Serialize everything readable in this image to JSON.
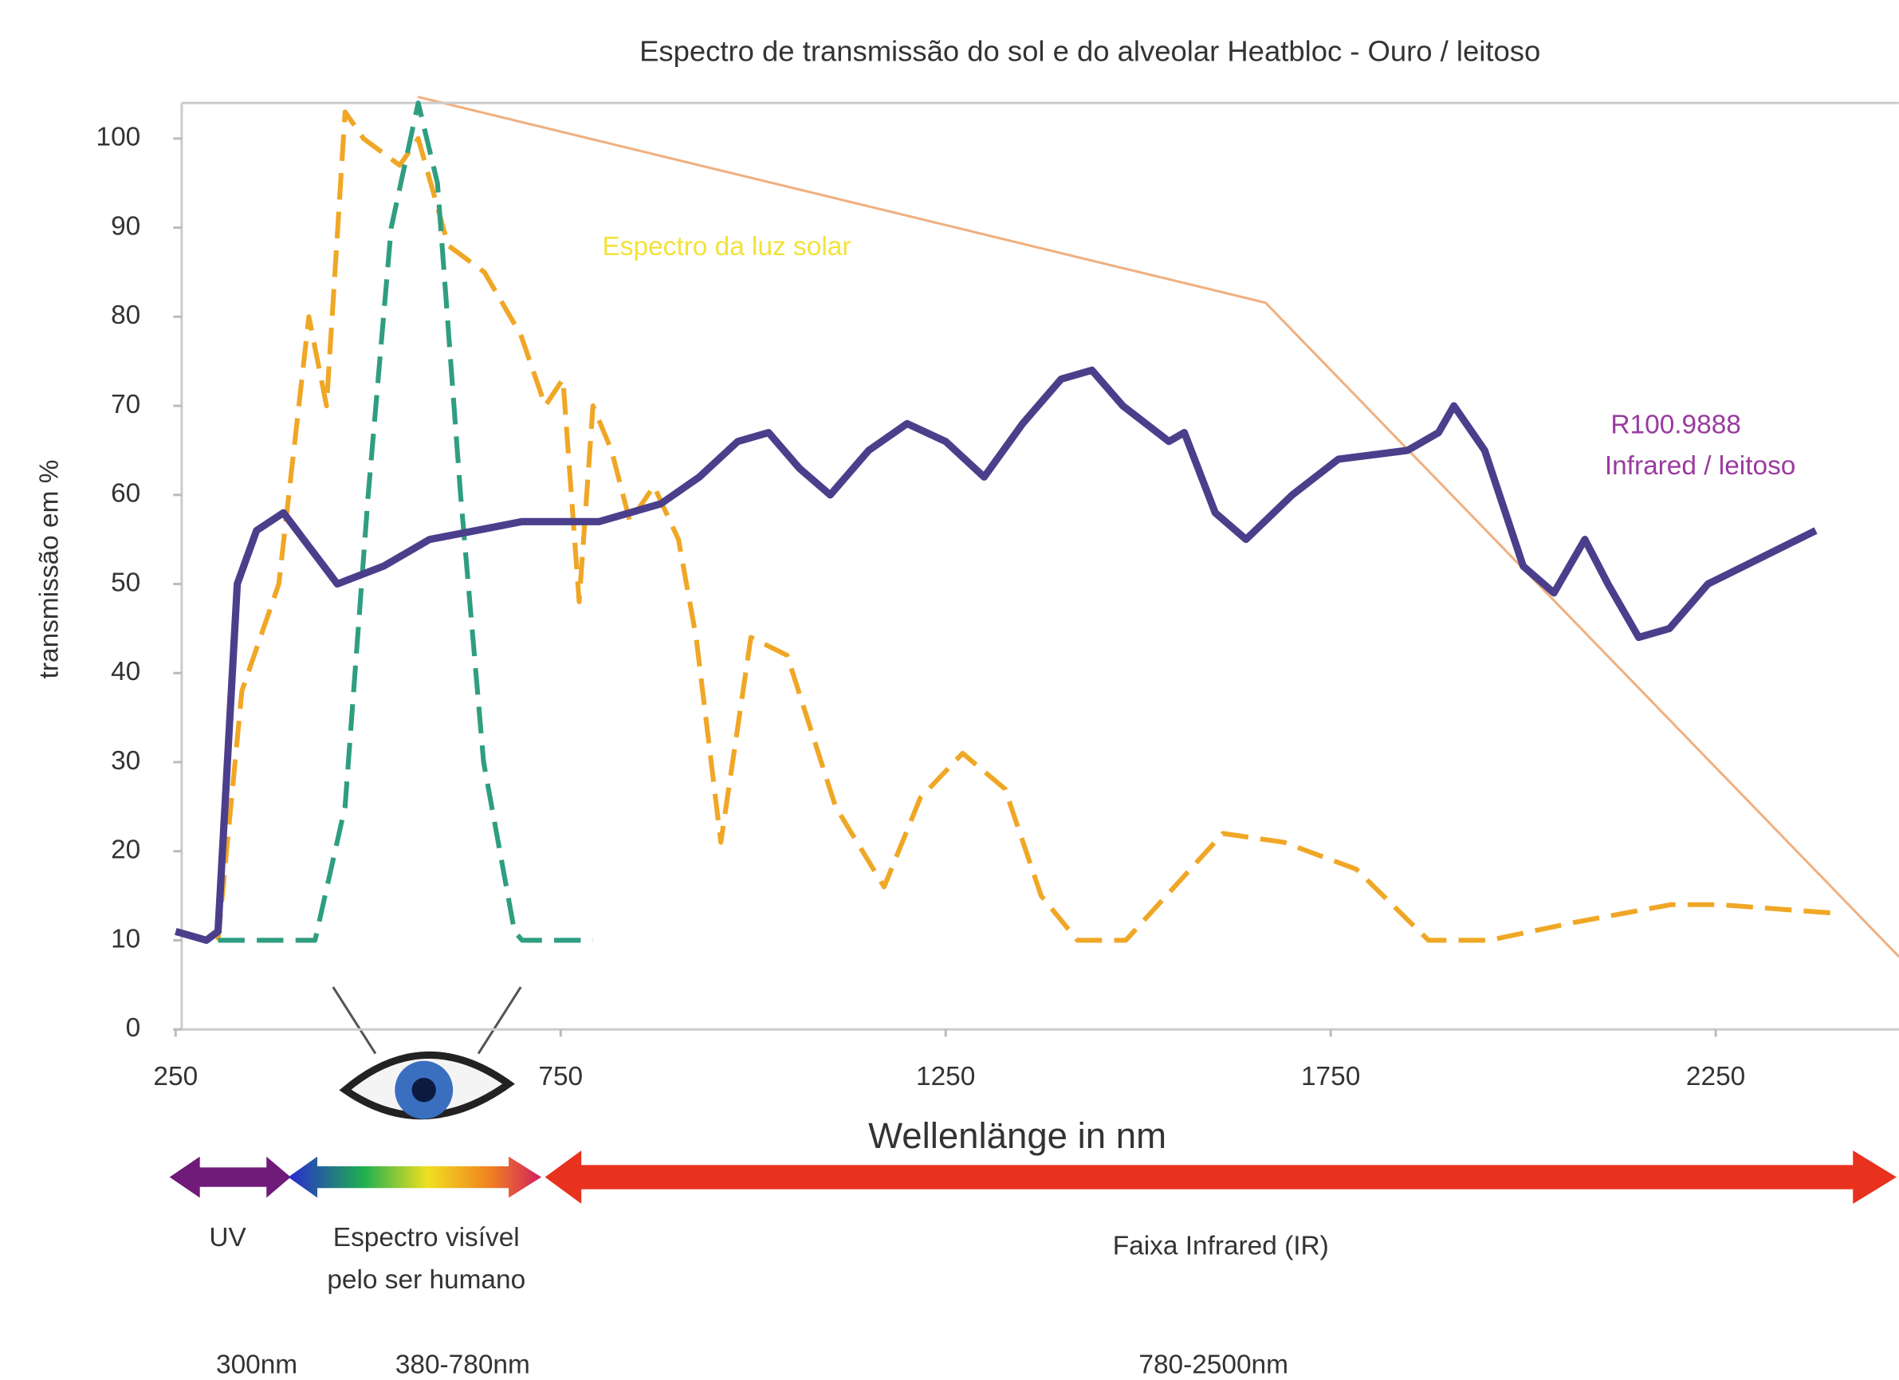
{
  "chart_data": {
    "type": "line",
    "title": "Espectro de transmissão do sol e do alveolar Heatbloc - Ouro / leitoso",
    "y_label": "transmissão em %",
    "x_label": "Wellenlänge  in nm",
    "xlim": [
      250,
      2488
    ],
    "xticks": [
      250,
      750,
      1250,
      1750,
      2250
    ],
    "ylim": [
      0,
      104
    ],
    "yticks": [
      0,
      10,
      20,
      30,
      40,
      50,
      60,
      70,
      80,
      90,
      100
    ],
    "grid": false,
    "series": [
      {
        "color": "#f0a726",
        "dashed": true,
        "x": [
          305,
          336,
          384,
          423,
          446,
          470,
          494,
          541,
          565,
          604,
          651,
          698,
          730,
          753,
          774,
          792,
          816,
          840,
          871,
          903,
          926,
          958,
          997,
          1044,
          1107,
          1170,
          1217,
          1272,
          1327,
          1374,
          1421,
          1484,
          1547,
          1610,
          1689,
          1783,
          1830,
          1877,
          1956,
          2066,
          2192,
          2255,
          2412
        ],
        "values": [
          10,
          38,
          50,
          80,
          70,
          103,
          100,
          97,
          100,
          88,
          85,
          78,
          70,
          73,
          48,
          70,
          65,
          57,
          61,
          55,
          44,
          21,
          44,
          42,
          25,
          16,
          26,
          31,
          27,
          15,
          10,
          10,
          16,
          22,
          21,
          18,
          14,
          10,
          10,
          12,
          14,
          14,
          13
        ]
      },
      {
        "color": "#2f9e80",
        "dashed": true,
        "x": [
          305,
          431,
          470,
          500,
          530,
          565,
          590,
          620,
          650,
          690,
          700,
          792
        ],
        "values": [
          10,
          10,
          25,
          60,
          90,
          104,
          95,
          60,
          30,
          11,
          10,
          10
        ]
      },
      {
        "color": "#4b3f8c",
        "dashed": false,
        "x": [
          250,
          290,
          305,
          330,
          355,
          390,
          460,
          520,
          580,
          640,
          700,
          800,
          880,
          930,
          980,
          1020,
          1060,
          1100,
          1150,
          1200,
          1250,
          1300,
          1350,
          1400,
          1440,
          1480,
          1540,
          1560,
          1600,
          1640,
          1700,
          1760,
          1850,
          1890,
          1910,
          1950,
          2000,
          2040,
          2080,
          2110,
          2150,
          2190,
          2240,
          2380
        ],
        "values": [
          11,
          10,
          11,
          50,
          56,
          58,
          50,
          52,
          55,
          56,
          57,
          57,
          59,
          62,
          66,
          67,
          63,
          60,
          65,
          68,
          66,
          62,
          68,
          73,
          74,
          70,
          66,
          67,
          58,
          55,
          60,
          64,
          65,
          67,
          70,
          65,
          52,
          49,
          55,
          50,
          44,
          45,
          50,
          56
        ]
      }
    ],
    "annotations": [
      "Espectro da luz solar",
      "R100.9888",
      "Infrared / leitoso",
      "UV",
      "Espectro visível",
      "pelo ser humano",
      "Faixa Infrared (IR)",
      "300nm",
      "380-780nm",
      "780-2500nm"
    ]
  }
}
